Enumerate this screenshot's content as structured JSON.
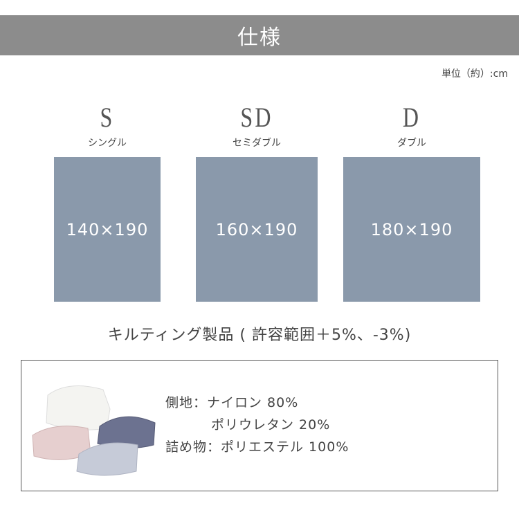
{
  "header": {
    "title": "仕様"
  },
  "unit_label": "単位（約）:cm",
  "sizes": [
    {
      "code": "S",
      "name": "シングル",
      "dimensions": "140×190"
    },
    {
      "code": "SD",
      "name": "セミダブル",
      "dimensions": "160×190"
    },
    {
      "code": "D",
      "name": "ダブル",
      "dimensions": "180×190"
    }
  ],
  "box_color": "#8a99ab",
  "note": "キルティング製品 ( 許容範囲＋5%、-3%)",
  "materials": {
    "outer_label": "側地：",
    "outer_1": "ナイロン 80%",
    "outer_2": "ポリウレタン 20%",
    "filling_label": "詰め物：",
    "filling": "ポリエステル 100%"
  }
}
